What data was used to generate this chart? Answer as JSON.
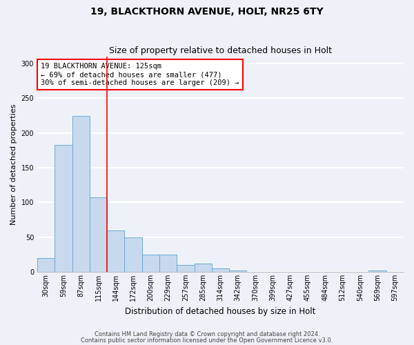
{
  "title1": "19, BLACKTHORN AVENUE, HOLT, NR25 6TY",
  "title2": "Size of property relative to detached houses in Holt",
  "xlabel": "Distribution of detached houses by size in Holt",
  "ylabel": "Number of detached properties",
  "bar_color": "#c8d9ee",
  "bar_edge_color": "#6aaad4",
  "bin_labels": [
    "30sqm",
    "59sqm",
    "87sqm",
    "115sqm",
    "144sqm",
    "172sqm",
    "200sqm",
    "229sqm",
    "257sqm",
    "285sqm",
    "314sqm",
    "342sqm",
    "370sqm",
    "399sqm",
    "427sqm",
    "455sqm",
    "484sqm",
    "512sqm",
    "540sqm",
    "569sqm",
    "597sqm"
  ],
  "bar_heights": [
    20,
    183,
    225,
    107,
    60,
    50,
    25,
    25,
    10,
    12,
    5,
    2,
    0,
    0,
    0,
    0,
    0,
    0,
    0,
    2,
    0
  ],
  "ylim": [
    0,
    310
  ],
  "yticks": [
    0,
    50,
    100,
    150,
    200,
    250,
    300
  ],
  "vline_position": 3.5,
  "annotation_text": "19 BLACKTHORN AVENUE: 125sqm\n← 69% of detached houses are smaller (477)\n30% of semi-detached houses are larger (209) →",
  "annotation_box_color": "white",
  "annotation_box_edge": "red",
  "vline_color": "red",
  "footer_line1": "Contains HM Land Registry data © Crown copyright and database right 2024.",
  "footer_line2": "Contains public sector information licensed under the Open Government Licence v3.0.",
  "background_color": "#eef2f8",
  "grid_color": "white",
  "title1_fontsize": 10,
  "title2_fontsize": 9,
  "xlabel_fontsize": 8.5,
  "ylabel_fontsize": 8,
  "footer_fontsize": 6,
  "tick_fontsize": 7,
  "annotation_fontsize": 7.5
}
